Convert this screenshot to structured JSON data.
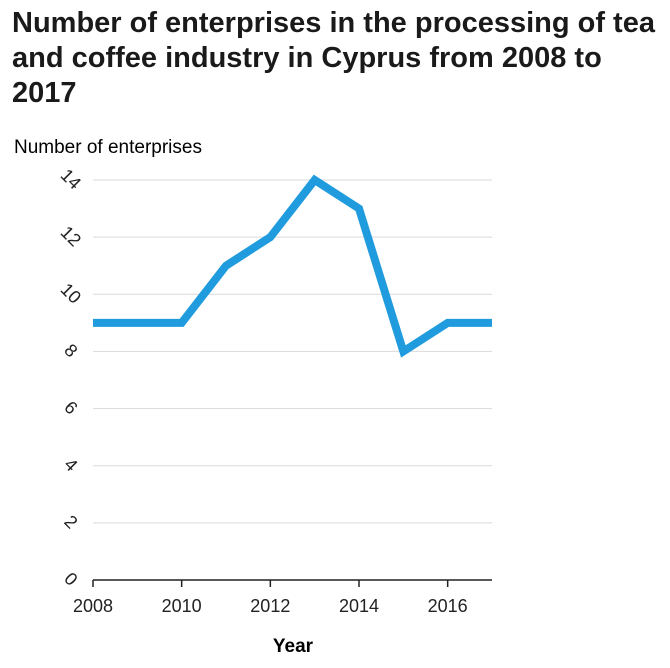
{
  "chart_data": {
    "type": "line",
    "title": "Number of enterprises in the processing of tea and coffee industry in Cyprus from 2008 to 2017",
    "xlabel": "Year",
    "ylabel": "Number of enterprises",
    "x": [
      2008,
      2009,
      2010,
      2011,
      2012,
      2013,
      2014,
      2015,
      2016,
      2017
    ],
    "series": [
      {
        "values": [
          9,
          9,
          9,
          11,
          12,
          14,
          13,
          8,
          9,
          9
        ]
      }
    ],
    "xticks": [
      2008,
      2010,
      2012,
      2014,
      2016
    ],
    "yticks": [
      0,
      2,
      4,
      6,
      8,
      10,
      12,
      14
    ],
    "xlim": [
      2008,
      2017
    ],
    "ylim": [
      0,
      14
    ],
    "grid": "horizontal",
    "line_color": "#1f9bde"
  }
}
